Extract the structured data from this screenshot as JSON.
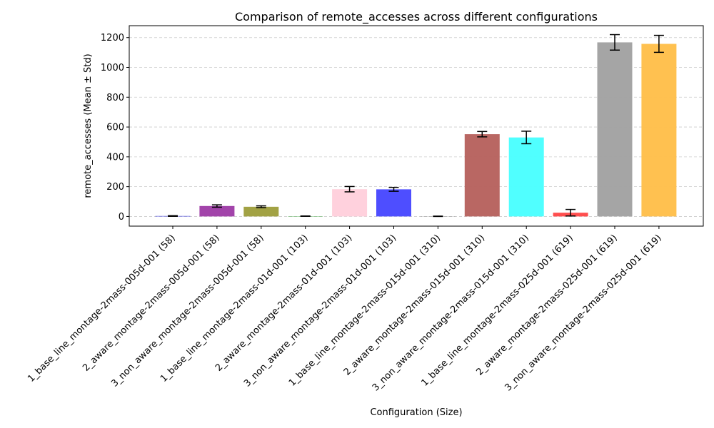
{
  "chart_data": {
    "type": "bar",
    "title": "Comparison of remote_accesses across different configurations",
    "xlabel": "Configuration (Size)",
    "ylabel": "remote_accesses (Mean ± Std)",
    "ylim": [
      -65,
      1280
    ],
    "yticks": [
      0,
      200,
      400,
      600,
      800,
      1000,
      1200
    ],
    "grid": "y-dashed",
    "categories": [
      "1_base_line_montage-2mass-005d-001 (58)",
      "2_aware_montage-2mass-005d-001 (58)",
      "3_non_aware_montage-2mass-005d-001 (58)",
      "1_base_line_montage-2mass-01d-001 (103)",
      "2_aware_montage-2mass-01d-001 (103)",
      "3_non_aware_montage-2mass-01d-001 (103)",
      "1_base_line_montage-2mass-015d-001 (310)",
      "2_aware_montage-2mass-015d-001 (310)",
      "3_non_aware_montage-2mass-015d-001 (310)",
      "1_base_line_montage-2mass-025d-001 (619)",
      "2_aware_montage-2mass-025d-001 (619)",
      "3_non_aware_montage-2mass-025d-001 (619)"
    ],
    "values": [
      3,
      70,
      65,
      2,
      183,
      182,
      1,
      552,
      530,
      25,
      1168,
      1158
    ],
    "errors": [
      2,
      8,
      6,
      1,
      18,
      13,
      1,
      18,
      42,
      22,
      52,
      57
    ],
    "colors": [
      "#4a4ae0",
      "#a040a8",
      "#a0a040",
      "#4cae4c",
      "#ffd0dc",
      "#4a4aff",
      "#5a5a5a",
      "#b86460",
      "#4cffff",
      "#ff4a4a",
      "#a3a3a3",
      "#ffc04c"
    ]
  }
}
